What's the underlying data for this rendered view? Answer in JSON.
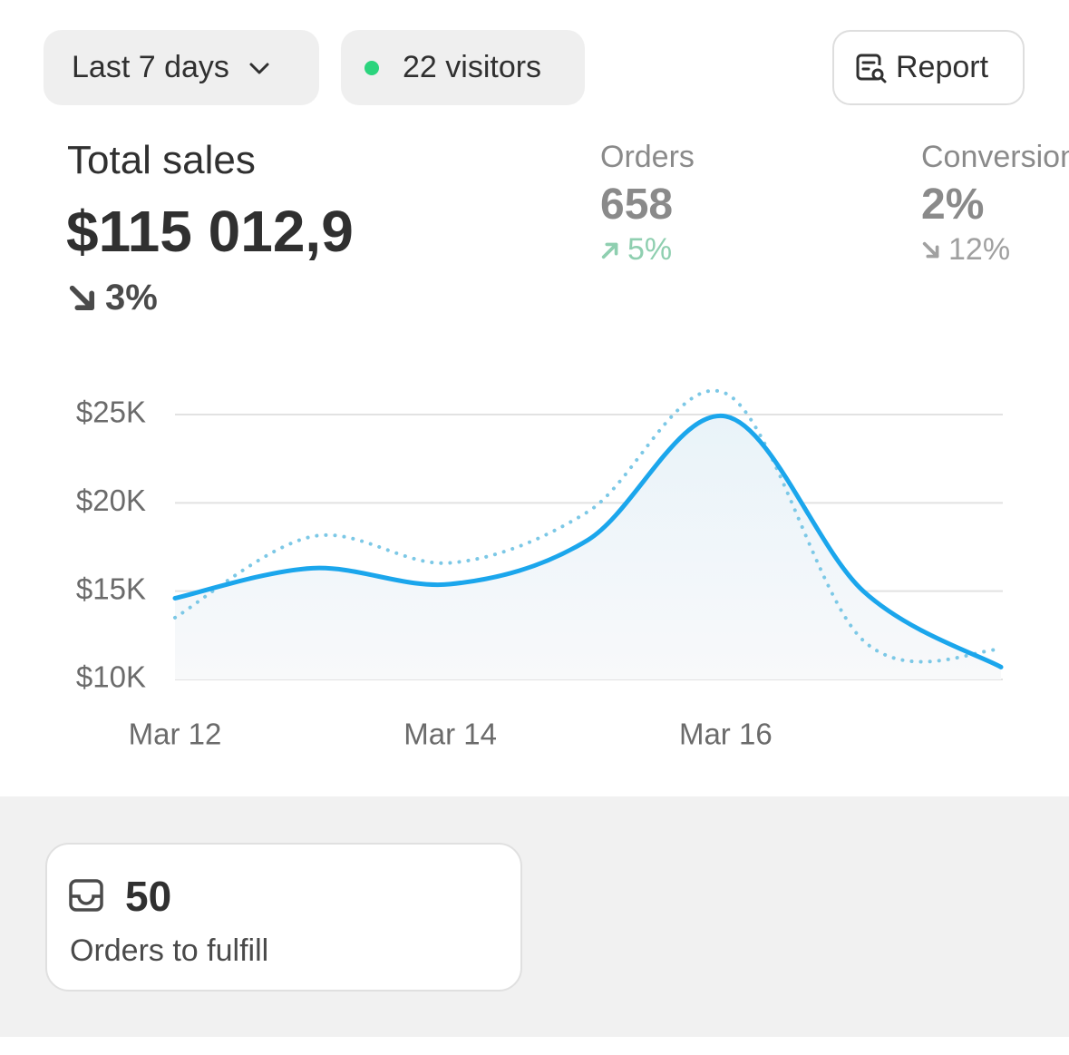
{
  "toolbar": {
    "date_range": "Last 7 days",
    "visitors": "22 visitors",
    "report": "Report"
  },
  "metrics": [
    {
      "label": "Total sales",
      "value": "$115 012,9",
      "change": "3%",
      "trend": "down"
    },
    {
      "label": "Orders",
      "value": "658",
      "change": "5%",
      "trend": "up"
    },
    {
      "label": "Conversion",
      "value": "2%",
      "change": "12%",
      "trend": "down"
    }
  ],
  "chart_data": {
    "type": "line",
    "categories": [
      "Mar 12",
      null,
      "Mar 14",
      null,
      "Mar 16",
      null,
      null
    ],
    "series": [
      {
        "color": "#1ba6ec",
        "style": "solid",
        "fill": true,
        "values": [
          14600,
          16300,
          15400,
          17900,
          24900,
          15000,
          10700
        ]
      },
      {
        "color": "#7cc8e6",
        "style": "dotted",
        "fill": false,
        "values": [
          13500,
          18100,
          16600,
          19500,
          26200,
          12200,
          11700
        ]
      }
    ],
    "ylim": [
      10000,
      25000
    ],
    "yticks": [
      {
        "value": 10000,
        "label": "$10K"
      },
      {
        "value": 15000,
        "label": "$15K"
      },
      {
        "value": 20000,
        "label": "$20K"
      },
      {
        "value": 25000,
        "label": "$25K"
      }
    ],
    "grid": true
  },
  "card": {
    "value": "50",
    "label": "Orders to fulfill"
  }
}
